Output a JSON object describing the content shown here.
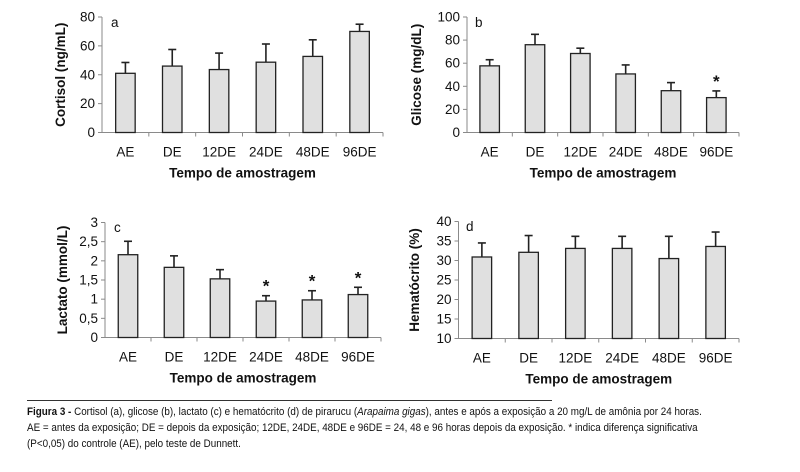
{
  "chart_data": [
    {
      "type": "bar",
      "panel": "a",
      "categories": [
        "AE",
        "DE",
        "12DE",
        "24DE",
        "48DE",
        "96DE"
      ],
      "values": [
        41,
        46,
        43.6,
        48.7,
        52.7,
        70
      ],
      "error_upper": [
        48.5,
        57.5,
        55,
        61.3,
        64.2,
        75
      ],
      "significant": [
        false,
        false,
        false,
        false,
        false,
        false
      ],
      "xlabel": "Tempo de amostragem",
      "ylabel": "Cortisol (ng/mL)",
      "ylim": [
        0,
        80
      ],
      "yticks": [
        0,
        20,
        40,
        60,
        80
      ],
      "ytick_labels": [
        "0",
        "20",
        "40",
        "60",
        "80"
      ],
      "grid": false
    },
    {
      "type": "bar",
      "panel": "b",
      "categories": [
        "AE",
        "DE",
        "12DE",
        "24DE",
        "48DE",
        "96DE"
      ],
      "values": [
        57.7,
        76,
        68.4,
        50.7,
        36.2,
        30.2
      ],
      "error_upper": [
        63,
        85,
        73,
        58.5,
        43.2,
        36
      ],
      "significant": [
        false,
        false,
        false,
        false,
        false,
        true
      ],
      "xlabel": "Tempo de amostragem",
      "ylabel": "Glicose (mg/dL)",
      "ylim": [
        0,
        100
      ],
      "yticks": [
        0,
        20,
        40,
        60,
        80,
        100
      ],
      "ytick_labels": [
        "0",
        "20",
        "40",
        "60",
        "80",
        "100"
      ],
      "grid": false
    },
    {
      "type": "bar",
      "panel": "c",
      "categories": [
        "AE",
        "DE",
        "12DE",
        "24DE",
        "48DE",
        "96DE"
      ],
      "values": [
        2.16,
        1.83,
        1.53,
        0.95,
        0.98,
        1.12
      ],
      "error_upper": [
        2.51,
        2.13,
        1.77,
        1.09,
        1.22,
        1.31
      ],
      "significant": [
        false,
        false,
        false,
        true,
        true,
        true
      ],
      "xlabel": "Tempo de amostragem",
      "ylabel": "Lactato (mmol/L)",
      "ylim": [
        0,
        3
      ],
      "yticks": [
        0,
        0.5,
        1,
        1.5,
        2,
        2.5,
        3
      ],
      "ytick_labels": [
        "0",
        "0,5",
        "1",
        "1,5",
        "2",
        "2,5",
        "3"
      ],
      "grid": false
    },
    {
      "type": "bar",
      "panel": "d",
      "categories": [
        "AE",
        "DE",
        "12DE",
        "24DE",
        "48DE",
        "96DE"
      ],
      "values": [
        30.9,
        32.1,
        33.1,
        33.1,
        30.5,
        33.6
      ],
      "error_upper": [
        34.5,
        36.4,
        36.2,
        36.2,
        36.2,
        37.3
      ],
      "significant": [
        false,
        false,
        false,
        false,
        false,
        false
      ],
      "xlabel": "Tempo de amostragem",
      "ylabel": "Hematócrito (%)",
      "ylim": [
        10,
        40
      ],
      "yticks": [
        10,
        15,
        20,
        25,
        30,
        35,
        40
      ],
      "ytick_labels": [
        "10",
        "15",
        "20",
        "25",
        "30",
        "35",
        "40"
      ],
      "grid": false
    }
  ],
  "significance_marker": "*",
  "colors": {
    "bar_fill": "#e0e0e0",
    "bar_stroke": "#222222",
    "axis": "#8a8a8a"
  },
  "caption": {
    "label": "Figura 3 -",
    "line1_a": " Cortisol (a), glicose (b), lactato (c) e hematócrito (d) de pirarucu (",
    "species": "Arapaima gigas",
    "line1_b": "), antes e após a exposição a 20 mg/L de amônia por 24 horas.",
    "line2": "AE = antes da exposição; DE = depois da exposição; 12DE, 24DE, 48DE e 96DE = 24, 48 e 96 horas depois da exposição. * indica diferença significativa",
    "line3": "(P<0,05) do controle (AE), pelo teste de Dunnett."
  }
}
